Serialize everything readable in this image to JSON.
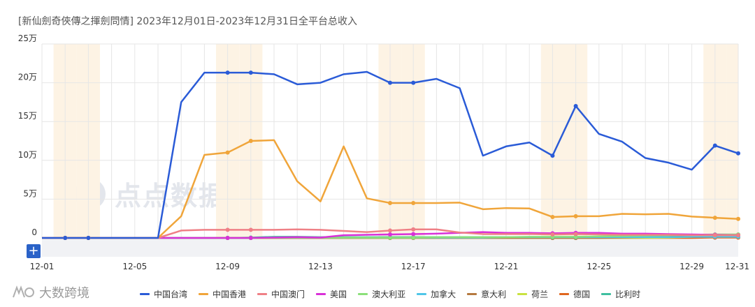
{
  "page_title": "[新仙劍奇俠傳之揮劍問情]  2023年12月01日-2023年12月31日全平台总收入",
  "watermark": {
    "text": "点点数据",
    "icon": "diandian-logo-icon"
  },
  "brand": {
    "text": "大数跨境",
    "icon": "dashu-logo-icon"
  },
  "zoom_button": {
    "label": "+",
    "icon": "plus-icon"
  },
  "colors": {
    "weekend_band": "#fdf3e4",
    "grid": "#e6e6e6",
    "accent": "#2a62c8"
  },
  "chart_data": {
    "type": "line",
    "title": "[新仙劍奇俠傳之揮劍問情]  2023年12月01日-2023年12月31日全平台总收入",
    "xlabel": "",
    "ylabel": "",
    "x_tick_labels": [
      "12-01",
      "12-05",
      "12-09",
      "12-13",
      "12-17",
      "12-21",
      "12-25",
      "12-29",
      "12-31"
    ],
    "y_tick_labels": [
      "0",
      "5万",
      "10万",
      "15万",
      "20万",
      "25万"
    ],
    "y_ticks": [
      0,
      50000,
      100000,
      150000,
      200000,
      250000
    ],
    "ylim": [
      0,
      250000
    ],
    "grid": true,
    "legend_position": "bottom",
    "weekend_bands": [
      "12-02",
      "12-03",
      "12-09",
      "12-10",
      "12-16",
      "12-17",
      "12-23",
      "12-24",
      "12-30",
      "12-31"
    ],
    "x": [
      "12-01",
      "12-02",
      "12-03",
      "12-04",
      "12-05",
      "12-06",
      "12-07",
      "12-08",
      "12-09",
      "12-10",
      "12-11",
      "12-12",
      "12-13",
      "12-14",
      "12-15",
      "12-16",
      "12-17",
      "12-18",
      "12-19",
      "12-20",
      "12-21",
      "12-22",
      "12-23",
      "12-24",
      "12-25",
      "12-26",
      "12-27",
      "12-28",
      "12-29",
      "12-30",
      "12-31"
    ],
    "series": [
      {
        "name": "中国台湾",
        "color": "#2a5bd7",
        "values": [
          0,
          0,
          0,
          0,
          0,
          0,
          175000,
          213000,
          213000,
          213000,
          211000,
          198000,
          200000,
          211000,
          214000,
          200000,
          200000,
          205000,
          193000,
          106000,
          118000,
          123000,
          106000,
          170000,
          134000,
          124000,
          103000,
          97000,
          88000,
          119000,
          109000
        ]
      },
      {
        "name": "中国香港",
        "color": "#f0a53a",
        "values": [
          0,
          0,
          0,
          0,
          0,
          0,
          28000,
          107000,
          110000,
          125000,
          126000,
          73000,
          47000,
          118000,
          51000,
          45000,
          45000,
          45000,
          45500,
          37000,
          38500,
          38000,
          27000,
          28000,
          28000,
          31000,
          30500,
          31000,
          27500,
          26000,
          24500
        ]
      },
      {
        "name": "中国澳门",
        "color": "#ef8086",
        "values": [
          0,
          0,
          0,
          0,
          0,
          0,
          9500,
          10500,
          10500,
          10500,
          10500,
          11000,
          10500,
          9000,
          7500,
          9500,
          11000,
          11000,
          7000,
          5000,
          5000,
          5000,
          4500,
          5000,
          4500,
          4000,
          4000,
          4000,
          3500,
          3500,
          3500
        ]
      },
      {
        "name": "美国",
        "color": "#d930d8",
        "values": [
          0,
          0,
          0,
          0,
          0,
          0,
          0,
          0,
          0,
          0,
          500,
          1000,
          500,
          3500,
          4000,
          4500,
          5000,
          5500,
          6500,
          7500,
          6500,
          6500,
          6000,
          6500,
          6500,
          5500,
          5500,
          5000,
          4500,
          4000,
          3500
        ]
      },
      {
        "name": "澳大利亚",
        "color": "#8be07a",
        "values": [
          0,
          0,
          0,
          0,
          0,
          0,
          0,
          0,
          0,
          0,
          500,
          500,
          500,
          500,
          500,
          500,
          500,
          1000,
          1000,
          1000,
          1000,
          1500,
          1500,
          1500,
          2000,
          2500,
          3000,
          3500,
          4000,
          4500,
          4500
        ]
      },
      {
        "name": "加拿大",
        "color": "#4fc6e8",
        "values": [
          0,
          0,
          0,
          0,
          0,
          0,
          0,
          0,
          0,
          0,
          500,
          500,
          500,
          500,
          500,
          500,
          500,
          500,
          500,
          500,
          1000,
          1000,
          1000,
          1000,
          1000,
          1000,
          1000,
          1000,
          1500,
          1500,
          1500
        ]
      },
      {
        "name": "意大利",
        "color": "#b5793f",
        "values": [
          0,
          0,
          0,
          0,
          0,
          0,
          0,
          0,
          0,
          0,
          0,
          0,
          0,
          0,
          0,
          0,
          0,
          0,
          0,
          0,
          0,
          0,
          0,
          0,
          0,
          500,
          1000,
          1500,
          2500,
          3000,
          4000
        ]
      },
      {
        "name": "荷兰",
        "color": "#c9e240",
        "values": [
          0,
          0,
          0,
          0,
          0,
          0,
          0,
          0,
          0,
          0,
          0,
          0,
          0,
          0,
          0,
          0,
          0,
          0,
          0,
          0,
          0,
          0,
          0,
          0,
          0,
          0,
          0,
          500,
          1500,
          3000,
          3500
        ]
      },
      {
        "name": "德国",
        "color": "#e0661e",
        "values": [
          0,
          0,
          0,
          0,
          0,
          0,
          0,
          0,
          0,
          0,
          0,
          0,
          0,
          0,
          0,
          0,
          0,
          0,
          0,
          0,
          0,
          0,
          0,
          0,
          0,
          0,
          0,
          0,
          0,
          500,
          500
        ]
      },
      {
        "name": "比利时",
        "color": "#3fbfa0",
        "values": [
          0,
          0,
          0,
          0,
          0,
          0,
          0,
          0,
          0,
          500,
          1500,
          1500,
          1000,
          1000,
          1000,
          1000,
          1000,
          1000,
          1000,
          1000,
          1000,
          1000,
          1000,
          1000,
          1000,
          1000,
          1000,
          1000,
          1500,
          1500,
          1500
        ]
      }
    ]
  }
}
